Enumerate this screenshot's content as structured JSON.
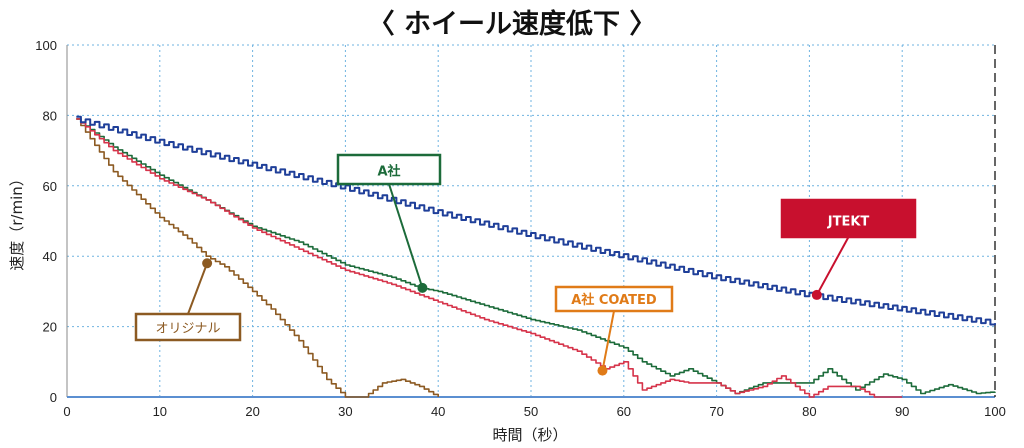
{
  "chart_data": {
    "type": "line",
    "title": "〈 ホイール速度低下 〉",
    "xlabel": "時間（秒）",
    "ylabel": "速度（r/min）",
    "xlim": [
      0,
      100
    ],
    "ylim": [
      0,
      100
    ],
    "x_ticks": [
      "0",
      "10",
      "20",
      "30",
      "40",
      "50",
      "60",
      "70",
      "80",
      "90",
      "100"
    ],
    "y_ticks": [
      "0",
      "20",
      "40",
      "60",
      "80",
      "100"
    ],
    "grid": true,
    "series": [
      {
        "name": "JTEKT",
        "color": "#1f3f99",
        "label_color": "#c8102e",
        "label_filled": true,
        "marker": [
          80.8,
          29
        ],
        "points": [
          [
            1,
            79
          ],
          [
            10,
            72.5
          ],
          [
            20,
            66
          ],
          [
            30,
            59.5
          ],
          [
            40,
            52.5
          ],
          [
            50,
            46
          ],
          [
            60,
            40
          ],
          [
            70,
            34
          ],
          [
            80,
            29
          ],
          [
            90,
            25
          ],
          [
            100,
            21
          ]
        ]
      },
      {
        "name": "A社",
        "color": "#1c6b3a",
        "label_color": "#1c6b3a",
        "label_filled": false,
        "marker": [
          38.3,
          31
        ],
        "points": [
          [
            1,
            79
          ],
          [
            5,
            71
          ],
          [
            10,
            63
          ],
          [
            15,
            56
          ],
          [
            20,
            48.5
          ],
          [
            25,
            44
          ],
          [
            30,
            37.5
          ],
          [
            35,
            34
          ],
          [
            38,
            31
          ],
          [
            40,
            30
          ],
          [
            45,
            26
          ],
          [
            50,
            22
          ],
          [
            55,
            19
          ],
          [
            60,
            14
          ],
          [
            62,
            10
          ],
          [
            65,
            6
          ],
          [
            67,
            8
          ],
          [
            70,
            4
          ],
          [
            72,
            1
          ],
          [
            75,
            4
          ],
          [
            80,
            4
          ],
          [
            82,
            8
          ],
          [
            85,
            2
          ],
          [
            88,
            6.5
          ],
          [
            90,
            5
          ],
          [
            92,
            1
          ],
          [
            95,
            3.5
          ],
          [
            98,
            1
          ],
          [
            100,
            1.5
          ]
        ]
      },
      {
        "name": "A社 COATED",
        "color": "#d6334a",
        "label_color": "#e07b18",
        "label_filled": false,
        "marker": [
          57.7,
          7.5
        ],
        "points": [
          [
            1,
            79
          ],
          [
            5,
            70
          ],
          [
            10,
            62
          ],
          [
            15,
            56
          ],
          [
            20,
            48
          ],
          [
            25,
            42
          ],
          [
            30,
            36
          ],
          [
            35,
            32
          ],
          [
            40,
            27
          ],
          [
            45,
            22
          ],
          [
            50,
            18
          ],
          [
            55,
            13
          ],
          [
            58,
            8
          ],
          [
            60,
            10
          ],
          [
            62,
            2
          ],
          [
            65,
            5
          ],
          [
            67,
            4
          ],
          [
            70,
            4
          ],
          [
            72,
            1
          ],
          [
            75,
            3
          ],
          [
            77,
            6
          ],
          [
            80,
            0
          ],
          [
            82,
            3
          ],
          [
            85,
            3
          ],
          [
            87,
            0
          ],
          [
            90,
            0
          ]
        ]
      },
      {
        "name": "オリジナル",
        "color": "#8c5a22",
        "label_color": "#8c5a22",
        "label_filled": false,
        "marker": [
          15.1,
          38
        ],
        "points": [
          [
            1,
            79
          ],
          [
            5,
            64
          ],
          [
            10,
            51
          ],
          [
            13,
            45
          ],
          [
            15,
            40
          ],
          [
            17,
            37
          ],
          [
            20,
            30
          ],
          [
            22,
            25
          ],
          [
            25,
            16
          ],
          [
            28,
            5
          ],
          [
            30,
            0
          ],
          [
            32,
            0
          ],
          [
            34,
            4
          ],
          [
            36,
            5
          ],
          [
            38,
            3
          ],
          [
            40,
            0
          ]
        ]
      }
    ],
    "baseline_color": "#5b8fd1",
    "end_marker_x": 100
  }
}
